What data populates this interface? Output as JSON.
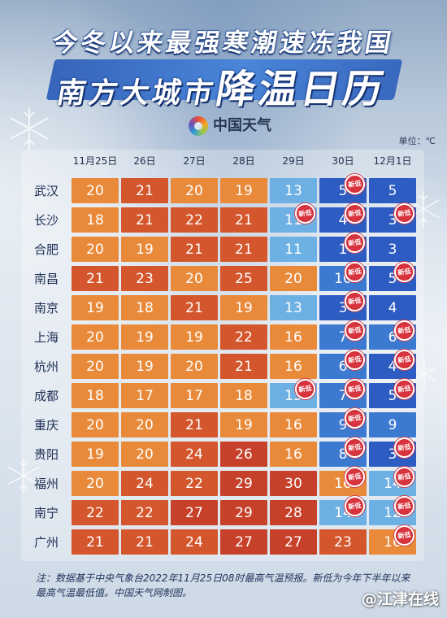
{
  "header": {
    "line1": "今冬以来最强寒潮速冻我国",
    "line2_small": "南方大城市",
    "line2_large": "降温日历"
  },
  "logo": {
    "name": "中国天气",
    "icon": "china-weather-swirl-icon"
  },
  "unit": "单位：℃",
  "colors": {
    "hot": "#C7402A",
    "warm": "#D4562C",
    "mild": "#E98A3B",
    "cool": "#6DB0E4",
    "cold": "#3C79D1",
    "frost": "#2D5CC3",
    "badge": "#D9343E"
  },
  "chart_data": {
    "type": "heatmap",
    "x": [
      "11月25日",
      "26日",
      "27日",
      "28日",
      "29日",
      "30日",
      "12月1日"
    ],
    "y": [
      "武汉",
      "长沙",
      "合肥",
      "南昌",
      "南京",
      "上海",
      "杭州",
      "成都",
      "重庆",
      "贵阳",
      "福州",
      "南宁",
      "广州"
    ],
    "values": [
      [
        20,
        21,
        20,
        19,
        13,
        5,
        5
      ],
      [
        18,
        21,
        22,
        21,
        11,
        4,
        3
      ],
      [
        20,
        19,
        21,
        21,
        11,
        1,
        3
      ],
      [
        21,
        23,
        20,
        25,
        20,
        10,
        5
      ],
      [
        19,
        18,
        21,
        19,
        13,
        3,
        4
      ],
      [
        20,
        19,
        19,
        22,
        16,
        7,
        6
      ],
      [
        20,
        19,
        20,
        21,
        16,
        6,
        4
      ],
      [
        18,
        17,
        17,
        18,
        13,
        7,
        5
      ],
      [
        20,
        20,
        21,
        19,
        16,
        9,
        9
      ],
      [
        19,
        20,
        24,
        26,
        16,
        8,
        3
      ],
      [
        20,
        24,
        22,
        29,
        30,
        16,
        14
      ],
      [
        22,
        22,
        27,
        29,
        28,
        14,
        12
      ],
      [
        21,
        21,
        24,
        27,
        27,
        23,
        16
      ]
    ],
    "badge_label": "新低",
    "new_low": [
      [
        0,
        0,
        0,
        0,
        0,
        1,
        0
      ],
      [
        0,
        0,
        0,
        0,
        1,
        1,
        1
      ],
      [
        0,
        0,
        0,
        0,
        0,
        1,
        0
      ],
      [
        0,
        0,
        0,
        0,
        0,
        1,
        1
      ],
      [
        0,
        0,
        0,
        0,
        0,
        1,
        0
      ],
      [
        0,
        0,
        0,
        0,
        0,
        1,
        1
      ],
      [
        0,
        0,
        0,
        0,
        0,
        1,
        1
      ],
      [
        0,
        0,
        0,
        0,
        1,
        1,
        1
      ],
      [
        0,
        0,
        0,
        0,
        0,
        1,
        0
      ],
      [
        0,
        0,
        0,
        0,
        0,
        1,
        1
      ],
      [
        0,
        0,
        0,
        0,
        0,
        1,
        1
      ],
      [
        0,
        0,
        0,
        0,
        0,
        1,
        1
      ],
      [
        0,
        0,
        0,
        0,
        0,
        0,
        1
      ]
    ]
  },
  "footnote": {
    "line1": "注：数据基于中央气象台2022年11月25日08时最高气温预报。新低为今年下半年以来",
    "line2": "最高气温最低值。中国天气网制图。"
  },
  "watermark": "@江津在线"
}
